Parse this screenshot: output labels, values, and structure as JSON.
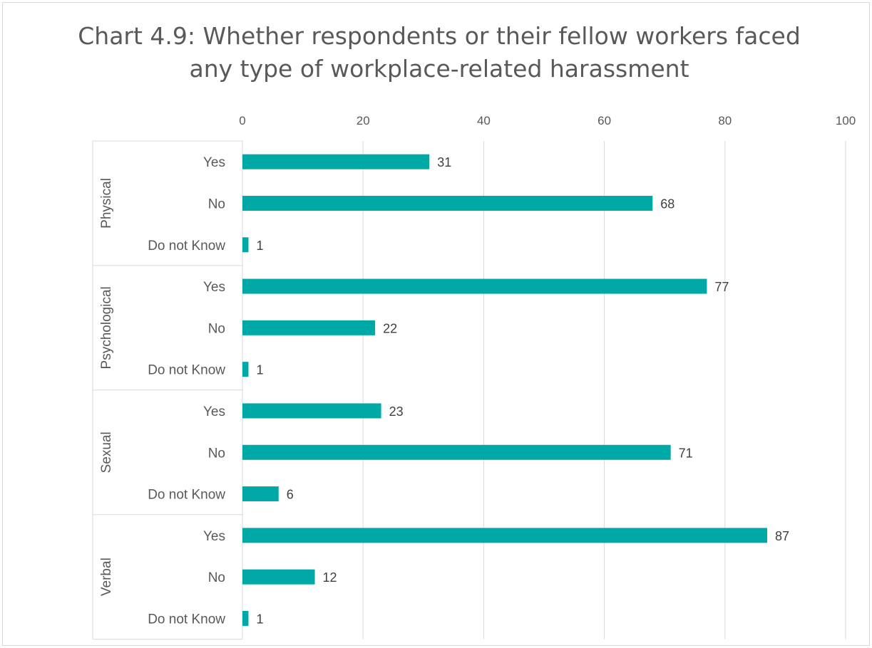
{
  "chart_data": {
    "type": "bar",
    "orientation": "horizontal",
    "title_lines": [
      "Chart 4.9: Whether respondents or their fellow workers faced",
      "any type of workplace-related harassment"
    ],
    "xlim": [
      0,
      100
    ],
    "x_ticks": [
      "0",
      "20",
      "40",
      "60",
      "80",
      "100"
    ],
    "x_axis_position": "top",
    "gridlines": true,
    "bar_color": "#00a9a5",
    "groups": [
      {
        "name": "Physical",
        "categories": [
          "Yes",
          "No",
          "Do not Know"
        ],
        "values": [
          31,
          68,
          1
        ]
      },
      {
        "name": "Psychological",
        "categories": [
          "Yes",
          "No",
          "Do not Know"
        ],
        "values": [
          77,
          22,
          1
        ]
      },
      {
        "name": "Sexual",
        "categories": [
          "Yes",
          "No",
          "Do not Know"
        ],
        "values": [
          23,
          71,
          6
        ]
      },
      {
        "name": "Verbal",
        "categories": [
          "Yes",
          "No",
          "Do not Know"
        ],
        "values": [
          87,
          12,
          1
        ]
      }
    ]
  }
}
